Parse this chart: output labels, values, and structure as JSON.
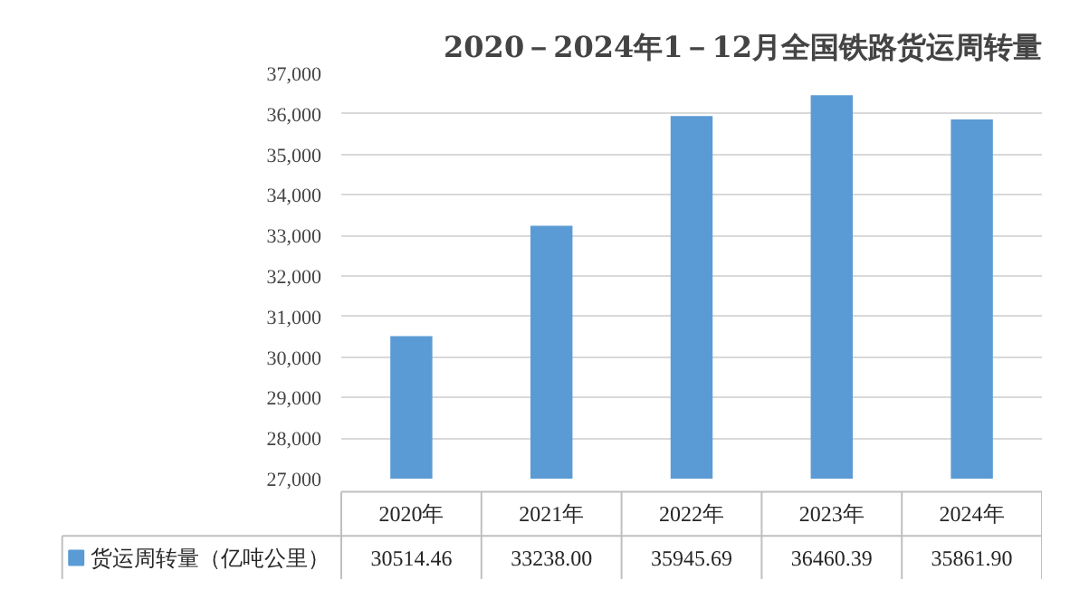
{
  "chart_data": {
    "type": "bar",
    "title": "2020－2024年1－12月全国铁路货运周转量",
    "categories": [
      "2020年",
      "2021年",
      "2022年",
      "2023年",
      "2024年"
    ],
    "series": [
      {
        "name": "货运周转量（亿吨公里）",
        "color": "#5b9bd5",
        "values": [
          30514.46,
          33238.0,
          35945.69,
          36460.39,
          35861.9
        ],
        "value_labels": [
          "30514.46",
          "33238.00",
          "35945.69",
          "36460.39",
          "35861.90"
        ]
      }
    ],
    "ylim": [
      27000,
      37000
    ],
    "yticks": [
      {
        "value": 27000,
        "label": "27,000"
      },
      {
        "value": 28000,
        "label": "28,000"
      },
      {
        "value": 29000,
        "label": "29,000"
      },
      {
        "value": 30000,
        "label": "30,000"
      },
      {
        "value": 31000,
        "label": "31,000"
      },
      {
        "value": 32000,
        "label": "32,000"
      },
      {
        "value": 33000,
        "label": "33,000"
      },
      {
        "value": 34000,
        "label": "34,000"
      },
      {
        "value": 35000,
        "label": "35,000"
      },
      {
        "value": 36000,
        "label": "36,000"
      },
      {
        "value": 37000,
        "label": "37,000"
      }
    ],
    "grid": "y",
    "legend": "bottom",
    "data_labels": true
  }
}
